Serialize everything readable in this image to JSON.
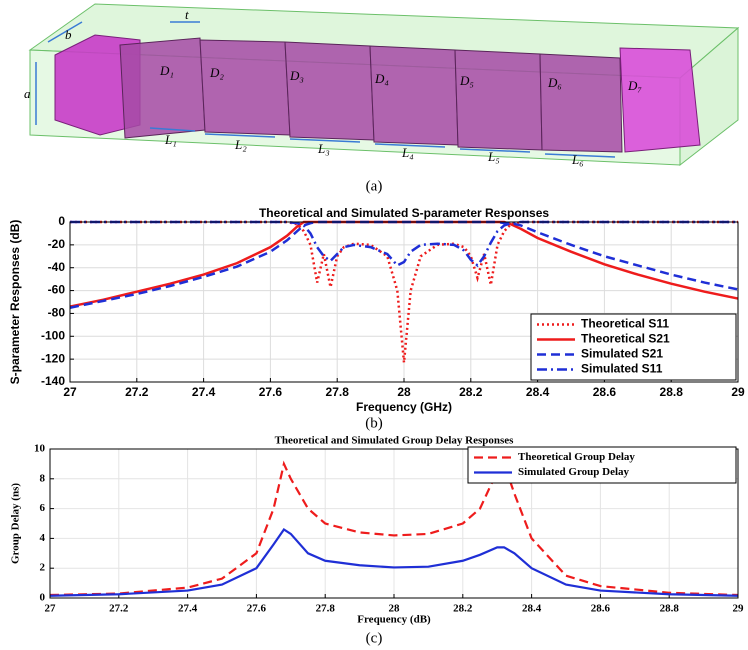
{
  "figure": {
    "labels": [
      "b",
      "t",
      "a",
      "D₁",
      "D₂",
      "D₃",
      "D₄",
      "D₅",
      "D₆",
      "D₇",
      "L₁",
      "L₂",
      "L₃",
      "L₄",
      "L₅",
      "L₆"
    ],
    "captions": [
      "(a)",
      "(b)",
      "(c)"
    ]
  },
  "chart_data": [
    {
      "type": "line",
      "title": "Theoretical and Simulated S-parameter Responses",
      "x_label": "Frequency (GHz)",
      "y_label": "S-parameter Responses (dB)",
      "x": [
        27,
        27.1,
        27.2,
        27.3,
        27.4,
        27.5,
        27.6,
        27.65,
        27.68,
        27.7,
        27.72,
        27.74,
        27.76,
        27.78,
        27.8,
        27.82,
        27.85,
        27.9,
        27.95,
        27.98,
        28.0,
        28.02,
        28.05,
        28.1,
        28.15,
        28.18,
        28.2,
        28.22,
        28.24,
        28.26,
        28.28,
        28.3,
        28.32,
        28.35,
        28.4,
        28.5,
        28.6,
        28.7,
        28.8,
        28.9,
        29
      ],
      "series": [
        {
          "name": "Theoretical S11",
          "color": "#ee1c1c",
          "style": "dotted",
          "values": [
            0,
            0,
            0,
            0,
            0,
            0,
            0,
            0,
            -2,
            -8,
            -20,
            -53,
            -28,
            -57,
            -30,
            -22,
            -19,
            -20,
            -30,
            -60,
            -123,
            -60,
            -30,
            -20,
            -19,
            -22,
            -30,
            -49,
            -28,
            -55,
            -20,
            -8,
            -2,
            0,
            0,
            0,
            0,
            0,
            0,
            0,
            0
          ]
        },
        {
          "name": "Theoretical S21",
          "color": "#ee1c1c",
          "style": "solid",
          "values": [
            -74,
            -68,
            -61,
            -54,
            -46,
            -36,
            -22,
            -12,
            -4,
            0,
            0,
            0,
            0,
            0,
            0,
            0,
            0,
            0,
            0,
            0,
            0,
            0,
            0,
            0,
            0,
            0,
            0,
            0,
            0,
            0,
            0,
            0,
            -2,
            -6,
            -14,
            -26,
            -37,
            -46,
            -54,
            -61,
            -67
          ]
        },
        {
          "name": "Simulated S21",
          "color": "#1f2fd6",
          "style": "dashed",
          "values": [
            -75,
            -69,
            -63,
            -56,
            -48,
            -39,
            -26,
            -16,
            -8,
            -3,
            -1,
            0,
            0,
            0,
            0,
            0,
            0,
            0,
            0,
            0,
            0,
            0,
            0,
            0,
            0,
            0,
            0,
            0,
            0,
            0,
            0,
            -1,
            -1,
            -3,
            -9,
            -20,
            -30,
            -38,
            -46,
            -53,
            -59
          ]
        },
        {
          "name": "Simulated S11",
          "color": "#1f2fd6",
          "style": "dashdot",
          "values": [
            0,
            0,
            0,
            0,
            0,
            0,
            0,
            0,
            -1,
            -3,
            -10,
            -22,
            -30,
            -34,
            -28,
            -22,
            -20,
            -22,
            -28,
            -38,
            -35,
            -26,
            -20,
            -19,
            -20,
            -25,
            -33,
            -38,
            -30,
            -18,
            -8,
            -3,
            -1,
            0,
            0,
            0,
            0,
            0,
            0,
            0,
            0
          ]
        }
      ],
      "xlim": [
        27,
        29
      ],
      "xticks": [
        27,
        27.2,
        27.4,
        27.6,
        27.8,
        28,
        28.2,
        28.4,
        28.6,
        28.8,
        29
      ],
      "ylim": [
        -140,
        0
      ],
      "yticks": [
        0,
        -20,
        -40,
        -60,
        -80,
        -100,
        -120,
        -140
      ],
      "grid": true,
      "legend": "lower-right"
    },
    {
      "type": "line",
      "title": "Theoretical and Simulated Group Delay Responses",
      "x_label": "Frequency (dB)",
      "y_label": "Group Delay (ns)",
      "x": [
        27,
        27.2,
        27.4,
        27.5,
        27.6,
        27.65,
        27.68,
        27.7,
        27.75,
        27.8,
        27.9,
        28,
        28.1,
        28.2,
        28.25,
        28.3,
        28.32,
        28.35,
        28.4,
        28.5,
        28.6,
        28.8,
        29
      ],
      "series": [
        {
          "name": "Theoretical Group Delay",
          "color": "#ee1c1c",
          "style": "dashed",
          "values": [
            0.2,
            0.3,
            0.7,
            1.3,
            3.0,
            6,
            9,
            8,
            6,
            5,
            4.4,
            4.2,
            4.3,
            5,
            6,
            8.5,
            9,
            7,
            4,
            1.5,
            0.8,
            0.35,
            0.2
          ]
        },
        {
          "name": "Simulated Group Delay",
          "color": "#1f2fd6",
          "style": "solid",
          "values": [
            0.15,
            0.25,
            0.5,
            0.9,
            2,
            3.6,
            4.6,
            4.3,
            3,
            2.5,
            2.2,
            2.05,
            2.1,
            2.5,
            2.9,
            3.4,
            3.4,
            3,
            2,
            0.9,
            0.5,
            0.25,
            0.15
          ]
        }
      ],
      "xlim": [
        27,
        29
      ],
      "xticks": [
        27,
        27.2,
        27.4,
        27.6,
        27.8,
        28,
        28.2,
        28.4,
        28.6,
        28.8,
        29
      ],
      "ylim": [
        0,
        10
      ],
      "yticks": [
        0,
        2,
        4,
        6,
        8,
        10
      ],
      "grid": true,
      "legend": "upper-right"
    }
  ]
}
